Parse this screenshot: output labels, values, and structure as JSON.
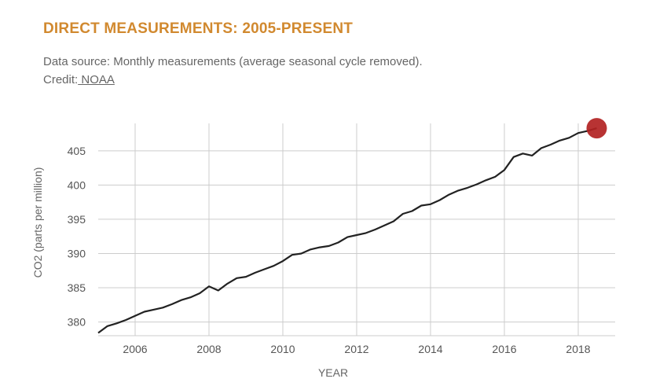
{
  "header": {
    "title": "DIRECT MEASUREMENTS: 2005-PRESENT",
    "source_text": "Data source: Monthly measurements (average seasonal cycle removed). Credit:",
    "credit_link": " NOAA"
  },
  "chart_data": {
    "type": "line",
    "title": "DIRECT MEASUREMENTS: 2005-PRESENT",
    "xlabel": "YEAR",
    "ylabel": "CO2 (parts per million)",
    "xlim": [
      2005,
      2019
    ],
    "ylim": [
      378,
      409
    ],
    "x_ticks": [
      2006,
      2008,
      2010,
      2012,
      2014,
      2016,
      2018
    ],
    "y_ticks": [
      380,
      385,
      390,
      395,
      400,
      405
    ],
    "grid": true,
    "line_color": "#222222",
    "marker_color": "#b22222",
    "series": [
      {
        "x": [
          2005.0,
          2005.25,
          2005.5,
          2005.75,
          2006.0,
          2006.25,
          2006.5,
          2006.75,
          2007.0,
          2007.25,
          2007.5,
          2007.75,
          2008.0,
          2008.25,
          2008.5,
          2008.75,
          2009.0,
          2009.25,
          2009.5,
          2009.75,
          2010.0,
          2010.25,
          2010.5,
          2010.75,
          2011.0,
          2011.25,
          2011.5,
          2011.75,
          2012.0,
          2012.25,
          2012.5,
          2012.75,
          2013.0,
          2013.25,
          2013.5,
          2013.75,
          2014.0,
          2014.25,
          2014.5,
          2014.75,
          2015.0,
          2015.25,
          2015.5,
          2015.75,
          2016.0,
          2016.25,
          2016.5,
          2016.75,
          2017.0,
          2017.25,
          2017.5,
          2017.75,
          2018.0,
          2018.25,
          2018.5
        ],
        "values": [
          378.4,
          379.4,
          379.8,
          380.3,
          380.9,
          381.5,
          381.8,
          382.1,
          382.6,
          383.2,
          383.6,
          384.2,
          385.2,
          384.6,
          385.6,
          386.4,
          386.6,
          387.2,
          387.7,
          388.2,
          388.9,
          389.8,
          390.0,
          390.6,
          390.9,
          391.1,
          391.6,
          392.4,
          392.7,
          393.0,
          393.5,
          394.1,
          394.7,
          395.8,
          396.2,
          397.0,
          397.2,
          397.8,
          398.6,
          399.2,
          399.6,
          400.1,
          400.7,
          401.2,
          402.2,
          404.1,
          404.6,
          404.3,
          405.4,
          405.9,
          406.5,
          406.9,
          407.6,
          407.9,
          408.3
        ]
      }
    ]
  }
}
